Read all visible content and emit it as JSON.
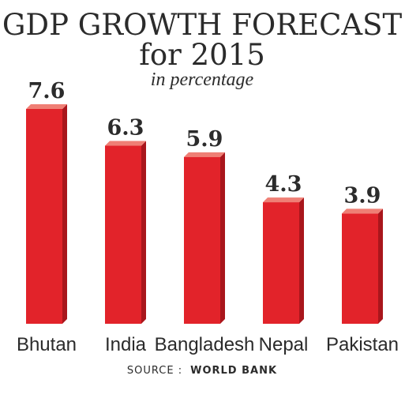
{
  "chart_data": {
    "type": "bar",
    "title_line1": "GDP GROWTH FORECAST",
    "title_line2": "for 2015",
    "subtitle": "in percentage",
    "categories": [
      "Bhutan",
      "India",
      "Bangladesh",
      "Nepal",
      "Pakistan"
    ],
    "values": [
      7.6,
      6.3,
      5.9,
      4.3,
      3.9
    ],
    "value_labels": [
      "7.6",
      "6.3",
      "5.9",
      "4.3",
      "3.9"
    ],
    "ylim": [
      0,
      7.6
    ],
    "grid": false,
    "legend": "none",
    "source_label": "SOURCE :",
    "source_name": "WORLD BANK",
    "colors": {
      "bar_front": "#e2232a",
      "bar_side": "#a9161c",
      "bar_top": "#ef7f75",
      "text": "#2b2b2b"
    }
  }
}
